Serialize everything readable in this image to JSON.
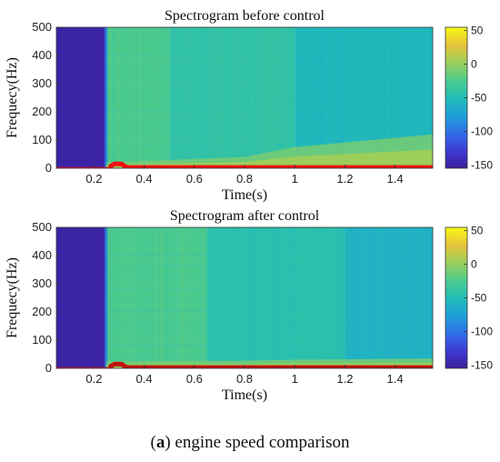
{
  "figure": {
    "caption_label": "a",
    "caption_text": " engine speed comparison"
  },
  "colors": {
    "colormap": [
      "#3b1f9c",
      "#3f3ad3",
      "#2f6fe8",
      "#1fa0d8",
      "#22bdb6",
      "#4ecb8c",
      "#9ccf5a",
      "#e7c23a",
      "#f8fa14"
    ],
    "trace_before": "#f01010",
    "trace_after": "#c01010"
  },
  "chart_data": [
    {
      "type": "heatmap",
      "title": "Spectrogram before control",
      "xlabel": "Time(s)",
      "ylabel": "Frequecy(Hz)",
      "xlim": [
        0.05,
        1.55
      ],
      "ylim": [
        0,
        500
      ],
      "x_ticks": [
        0.2,
        0.4,
        0.6,
        0.8,
        1,
        1.2,
        1.4
      ],
      "y_ticks": [
        0,
        100,
        200,
        300,
        400,
        500
      ],
      "colorbar": {
        "range": [
          -155,
          55
        ],
        "ticks": [
          50,
          0,
          -50,
          -100,
          -150
        ]
      },
      "regions": [
        {
          "t_start": 0.05,
          "t_end": 0.25,
          "level_db": -150
        },
        {
          "t_start": 0.25,
          "t_end": 0.5,
          "level_db": -25
        },
        {
          "t_start": 0.5,
          "t_end": 1.0,
          "level_db": -40
        },
        {
          "t_start": 1.0,
          "t_end": 1.55,
          "level_db": -55
        }
      ],
      "low_freq_band": {
        "f_max_start": 20,
        "f_max_end": 120,
        "level_db": 5
      },
      "engine_speed_trace": {
        "t": [
          0.26,
          0.28,
          0.31,
          0.33,
          1.55
        ],
        "f": [
          3,
          15,
          15,
          3,
          3
        ]
      }
    },
    {
      "type": "heatmap",
      "title": "Spectrogram after control",
      "xlabel": "Time(s)",
      "ylabel": "Frequecy(Hz)",
      "xlim": [
        0.05,
        1.55
      ],
      "ylim": [
        0,
        500
      ],
      "x_ticks": [
        0.2,
        0.4,
        0.6,
        0.8,
        1,
        1.2,
        1.4
      ],
      "y_ticks": [
        0,
        100,
        200,
        300,
        400,
        500
      ],
      "colorbar": {
        "range": [
          -155,
          55
        ],
        "ticks": [
          50,
          0,
          -50,
          -100,
          -150
        ]
      },
      "regions": [
        {
          "t_start": 0.05,
          "t_end": 0.25,
          "level_db": -150
        },
        {
          "t_start": 0.25,
          "t_end": 0.65,
          "level_db": -25
        },
        {
          "t_start": 0.65,
          "t_end": 1.2,
          "level_db": -45
        },
        {
          "t_start": 1.2,
          "t_end": 1.55,
          "level_db": -60
        }
      ],
      "low_freq_band": {
        "f_max_start": 25,
        "f_max_end": 35,
        "level_db": 5
      },
      "engine_speed_trace": {
        "t": [
          0.26,
          0.28,
          0.31,
          0.33,
          1.55
        ],
        "f": [
          3,
          15,
          15,
          3,
          3
        ]
      }
    }
  ]
}
